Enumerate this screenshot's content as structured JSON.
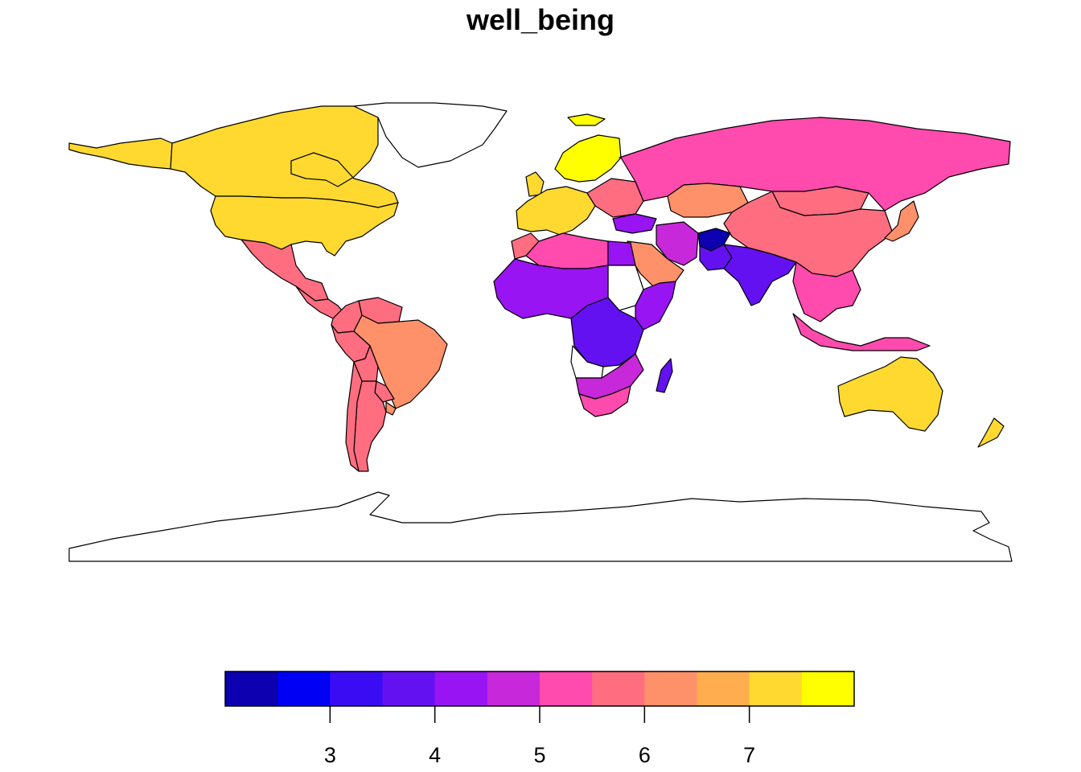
{
  "title": "well_being",
  "legend": {
    "breaks": [
      2,
      2.5,
      3,
      3.5,
      4,
      4.5,
      5,
      5.5,
      6,
      6.5,
      7,
      7.5,
      8
    ],
    "colors": [
      "#0C00B0",
      "#0000F5",
      "#3A0CF4",
      "#6411F2",
      "#9814F2",
      "#C728D9",
      "#FF4AAE",
      "#FF6D80",
      "#FF916A",
      "#FFAD4E",
      "#FFD92F",
      "#FFFF00"
    ],
    "ticks": [
      3,
      4,
      5,
      6,
      7
    ],
    "tick_labels": [
      "3",
      "4",
      "5",
      "6",
      "7"
    ]
  },
  "regions": [
    {
      "name": "Canada",
      "value": 7.4
    },
    {
      "name": "United States",
      "value": 7.4
    },
    {
      "name": "Alaska",
      "value": 7.4
    },
    {
      "name": "Greenland",
      "value": null
    },
    {
      "name": "Mexico",
      "value": 5.8
    },
    {
      "name": "Central America",
      "value": 5.8
    },
    {
      "name": "Colombia",
      "value": 5.6
    },
    {
      "name": "Venezuela",
      "value": 5.6
    },
    {
      "name": "Brazil",
      "value": 6.4
    },
    {
      "name": "Peru",
      "value": 5.8
    },
    {
      "name": "Bolivia",
      "value": 5.6
    },
    {
      "name": "Argentina",
      "value": 5.9
    },
    {
      "name": "Chile",
      "value": 5.9
    },
    {
      "name": "Paraguay",
      "value": 5.8
    },
    {
      "name": "Uruguay",
      "value": 6.4
    },
    {
      "name": "Scandinavia",
      "value": 7.7
    },
    {
      "name": "Western Europe",
      "value": 7.3
    },
    {
      "name": "Eastern Europe",
      "value": 5.7
    },
    {
      "name": "United Kingdom",
      "value": 7.3
    },
    {
      "name": "Iceland",
      "value": 7.5
    },
    {
      "name": "Russia",
      "value": 5.4
    },
    {
      "name": "Kazakhstan",
      "value": 6.1
    },
    {
      "name": "China",
      "value": 5.9
    },
    {
      "name": "Mongolia",
      "value": 5.8
    },
    {
      "name": "Turkey",
      "value": 4.2
    },
    {
      "name": "Iran",
      "value": 4.7
    },
    {
      "name": "Saudi Arabia",
      "value": 6.3
    },
    {
      "name": "Afghanistan",
      "value": 2.4
    },
    {
      "name": "Pakistan",
      "value": 3.8
    },
    {
      "name": "India",
      "value": 3.6
    },
    {
      "name": "Southeast Asia",
      "value": 5.3
    },
    {
      "name": "Indonesia",
      "value": 5.4
    },
    {
      "name": "Japan",
      "value": 6.4
    },
    {
      "name": "Australia",
      "value": 7.4
    },
    {
      "name": "New Zealand",
      "value": 7.4
    },
    {
      "name": "North Africa",
      "value": 5.2
    },
    {
      "name": "Morocco",
      "value": 5.5
    },
    {
      "name": "Egypt",
      "value": 4.2
    },
    {
      "name": "Sudan",
      "value": null
    },
    {
      "name": "West Africa",
      "value": 4.3
    },
    {
      "name": "Central Africa",
      "value": 3.6
    },
    {
      "name": "East Africa",
      "value": 4.3
    },
    {
      "name": "Angola",
      "value": null
    },
    {
      "name": "Southern Africa",
      "value": 4.6
    },
    {
      "name": "South Africa",
      "value": 5.2
    },
    {
      "name": "Madagascar",
      "value": 3.7
    },
    {
      "name": "Antarctica",
      "value": null
    }
  ]
}
